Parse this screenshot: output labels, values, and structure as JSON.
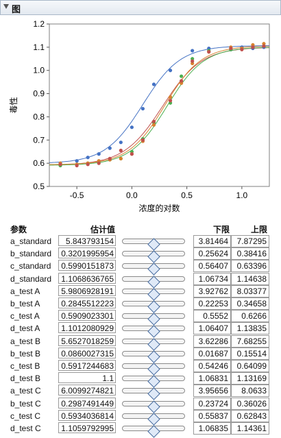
{
  "panel": {
    "title": "图"
  },
  "chart_data": {
    "type": "scatter",
    "xlabel": "浓度的对数",
    "ylabel": "毒性",
    "xlim": [
      -0.75,
      1.25
    ],
    "ylim": [
      0.5,
      1.2
    ],
    "x_ticks": [
      "-0.5",
      "0.0",
      "0.5",
      "1.0"
    ],
    "x_tick_values": [
      -0.5,
      0.0,
      0.5,
      1.0
    ],
    "y_ticks": [
      "0.5",
      "0.6",
      "0.7",
      "0.8",
      "0.9",
      "1.0",
      "1.1",
      "1.2"
    ],
    "y_tick_values": [
      0.5,
      0.6,
      0.7,
      0.8,
      0.9,
      1.0,
      1.1,
      1.2
    ],
    "series": [
      {
        "color": "#4472c4",
        "x": [
          -0.65,
          -0.5,
          -0.4,
          -0.3,
          -0.2,
          -0.1,
          0.0,
          0.1,
          0.2,
          0.35,
          0.55,
          0.7,
          0.9,
          1.0,
          1.1,
          1.2
        ],
        "y": [
          0.6,
          0.61,
          0.625,
          0.64,
          0.665,
          0.69,
          0.755,
          0.835,
          0.94,
          1.0,
          1.085,
          1.095,
          1.09,
          1.1,
          1.095,
          1.1
        ],
        "params": {
          "a": 5.843793154,
          "b": 0.3201995954,
          "c": 0.5990151873,
          "d": 1.1068636765
        }
      },
      {
        "color": "#4caf50",
        "x": [
          -0.65,
          -0.5,
          -0.4,
          -0.3,
          -0.2,
          -0.1,
          0.0,
          0.1,
          0.2,
          0.35,
          0.45,
          0.55,
          0.7,
          0.9,
          1.0,
          1.1,
          1.2
        ],
        "y": [
          0.59,
          0.595,
          0.6,
          0.605,
          0.615,
          0.62,
          0.65,
          0.705,
          0.775,
          0.86,
          0.975,
          1.05,
          1.085,
          1.09,
          1.095,
          1.1,
          1.105
        ],
        "params": {
          "a": 5.9806928191,
          "b": 0.2845512223,
          "c": 0.5909023301,
          "d": 1.1012080929
        }
      },
      {
        "color": "#d7822f",
        "x": [
          -0.65,
          -0.5,
          -0.4,
          -0.3,
          -0.2,
          -0.1,
          0.0,
          0.1,
          0.2,
          0.35,
          0.45,
          0.55,
          0.7,
          0.9,
          1.0,
          1.1,
          1.2
        ],
        "y": [
          0.6,
          0.595,
          0.6,
          0.61,
          0.615,
          0.62,
          0.64,
          0.695,
          0.765,
          0.885,
          0.945,
          1.03,
          1.08,
          1.1,
          1.095,
          1.11,
          1.115
        ],
        "params": {
          "a": 6.0099274821,
          "b": 0.2987491449,
          "c": 0.5934036814,
          "d": 1.1059792995
        }
      },
      {
        "color": "#c0504d",
        "x": [
          -0.65,
          -0.5,
          -0.4,
          -0.3,
          -0.2,
          -0.1,
          0.0,
          0.1,
          0.2,
          0.35,
          0.45,
          0.55,
          0.7,
          0.9,
          1.0,
          1.1,
          1.2
        ],
        "y": [
          0.595,
          0.59,
          0.595,
          0.6,
          0.62,
          0.655,
          0.64,
          0.7,
          0.78,
          0.87,
          0.955,
          1.04,
          1.08,
          1.095,
          1.09,
          1.1,
          1.105
        ],
        "params": {
          "a": 5.6527018259,
          "b": 0.0860027315,
          "c": 0.5917244683,
          "d": 1.1
        }
      }
    ]
  },
  "table": {
    "headers": {
      "param": "参数",
      "estimate": "估计值",
      "lower": "下限",
      "upper": "上限"
    },
    "rows": [
      {
        "name": "a_standard",
        "value": "5.843793154",
        "lower": "3.81464",
        "upper": "7.87295",
        "pos": 0.5
      },
      {
        "name": "b_standard",
        "value": "0.3201995954",
        "lower": "0.25624",
        "upper": "0.38416",
        "pos": 0.5
      },
      {
        "name": "c_standard",
        "value": "0.5990151873",
        "lower": "0.56407",
        "upper": "0.63396",
        "pos": 0.5
      },
      {
        "name": "d_standard",
        "value": "1.1068636765",
        "lower": "1.06734",
        "upper": "1.14638",
        "pos": 0.5
      },
      {
        "name": "a_test A",
        "value": "5.9806928191",
        "lower": "3.92762",
        "upper": "8.03377",
        "pos": 0.5
      },
      {
        "name": "b_test A",
        "value": "0.2845512223",
        "lower": "0.22253",
        "upper": "0.34658",
        "pos": 0.5
      },
      {
        "name": "c_test A",
        "value": "0.5909023301",
        "lower": "0.5552",
        "upper": "0.6266",
        "pos": 0.5
      },
      {
        "name": "d_test A",
        "value": "1.1012080929",
        "lower": "1.06407",
        "upper": "1.13835",
        "pos": 0.5
      },
      {
        "name": "a_test B",
        "value": "5.6527018259",
        "lower": "3.62286",
        "upper": "7.68255",
        "pos": 0.5
      },
      {
        "name": "b_test B",
        "value": "0.0860027315",
        "lower": "0.01687",
        "upper": "0.15514",
        "pos": 0.5
      },
      {
        "name": "c_test B",
        "value": "0.5917244683",
        "lower": "0.54246",
        "upper": "0.64099",
        "pos": 0.5
      },
      {
        "name": "d_test B",
        "value": "1.1",
        "lower": "1.06831",
        "upper": "1.13169",
        "pos": 0.5
      },
      {
        "name": "a_test C",
        "value": "6.0099274821",
        "lower": "3.95656",
        "upper": "8.0633",
        "pos": 0.5
      },
      {
        "name": "b_test C",
        "value": "0.2987491449",
        "lower": "0.23724",
        "upper": "0.36026",
        "pos": 0.5
      },
      {
        "name": "c_test C",
        "value": "0.5934036814",
        "lower": "0.55837",
        "upper": "0.62843",
        "pos": 0.5
      },
      {
        "name": "d_test C",
        "value": "1.1059792995",
        "lower": "1.06835",
        "upper": "1.14361",
        "pos": 0.5
      }
    ]
  }
}
